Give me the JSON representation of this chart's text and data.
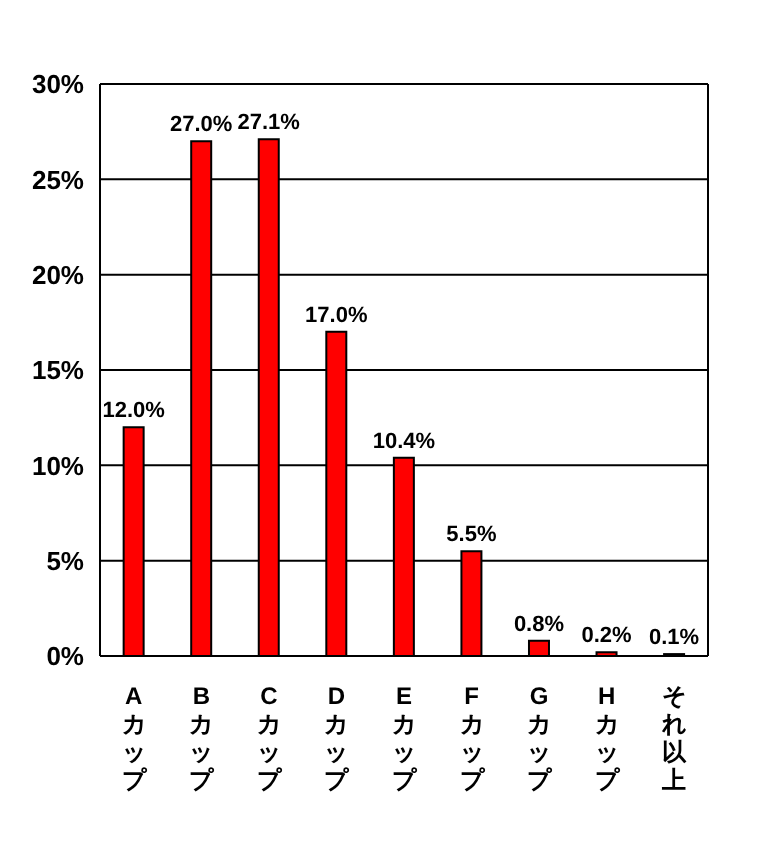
{
  "chart_data": {
    "type": "bar",
    "categories": [
      "Aカップ",
      "Bカップ",
      "Cカップ",
      "Dカップ",
      "Eカップ",
      "Fカップ",
      "Gカップ",
      "Hカップ",
      "それ以上"
    ],
    "values": [
      12.0,
      27.0,
      27.1,
      17.0,
      10.4,
      5.5,
      0.8,
      0.2,
      0.1
    ],
    "value_labels": [
      "12.0%",
      "27.0%",
      "27.1%",
      "17.0%",
      "10.4%",
      "5.5%",
      "0.8%",
      "0.2%",
      "0.1%"
    ],
    "color": "#ff0000",
    "ylim": [
      0,
      30
    ],
    "yticks": [
      {
        "value": 0,
        "label": "0%"
      },
      {
        "value": 5,
        "label": "5%"
      },
      {
        "value": 10,
        "label": "10%"
      },
      {
        "value": 15,
        "label": "15%"
      },
      {
        "value": 20,
        "label": "20%"
      },
      {
        "value": 25,
        "label": "25%"
      },
      {
        "value": 30,
        "label": "30%"
      }
    ],
    "grid": "y"
  }
}
